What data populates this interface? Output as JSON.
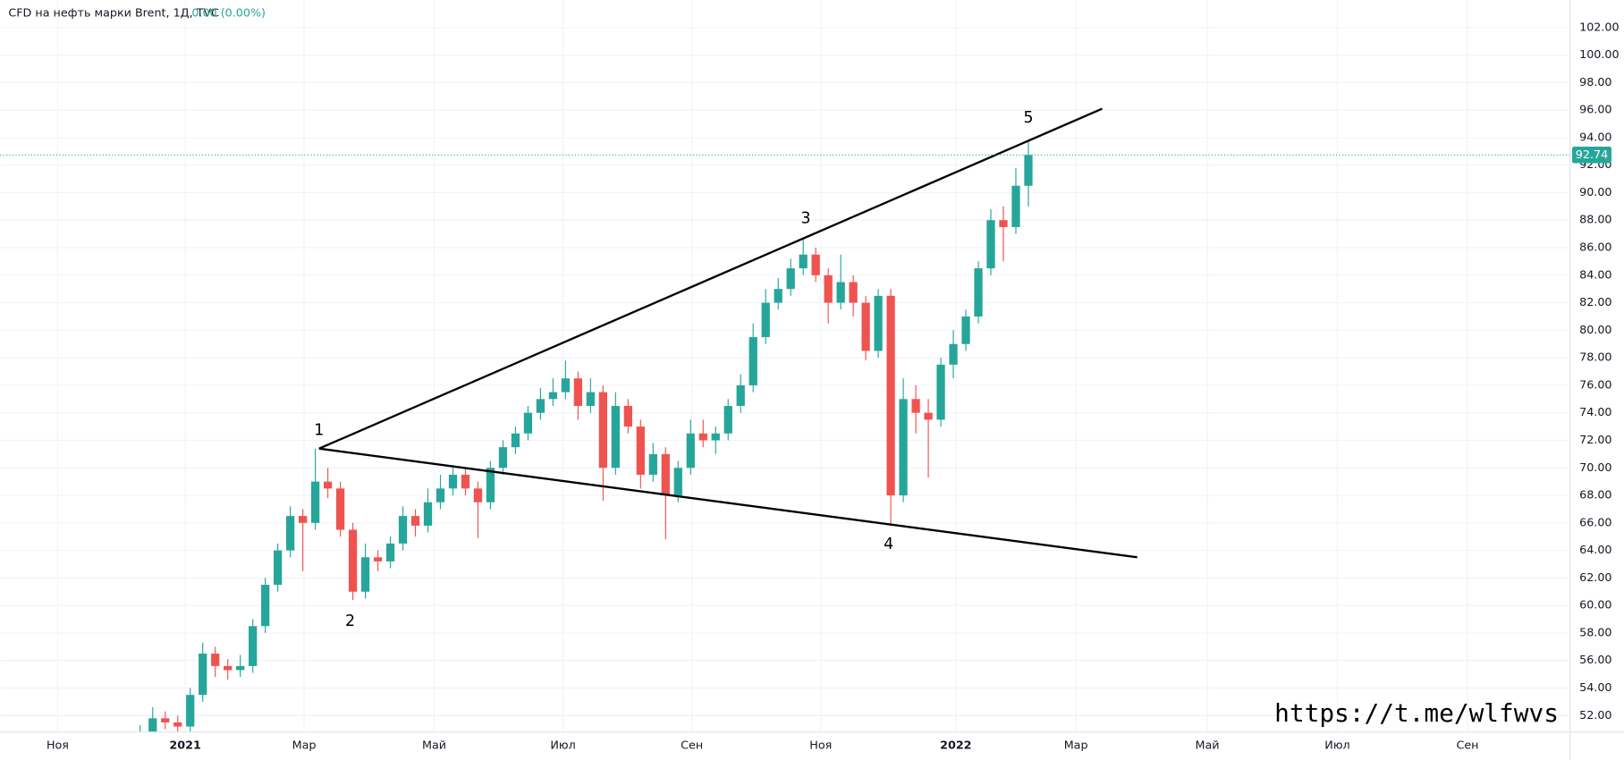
{
  "chart_data": {
    "type": "candlestick",
    "title": "CFD на нефть марки Brent, 1Д, TVC",
    "change_label": "0.00 (0.00%)",
    "up_color": "#26a69a",
    "down_color": "#ef5350",
    "line_color": "#000000",
    "open": [
      50.3,
      50.8,
      51.8,
      51.5,
      51.2,
      53.5,
      56.5,
      55.6,
      55.3,
      55.6,
      58.5,
      61.5,
      64,
      66.5,
      66,
      69,
      68.5,
      65.5,
      61,
      63.5,
      63.2,
      64.5,
      66.5,
      65.8,
      67.5,
      68.5,
      69.5,
      68.5,
      67.5,
      70,
      71.5,
      72.5,
      74,
      75,
      75.5,
      76.5,
      74.5,
      75.5,
      70,
      74.5,
      73,
      69.5,
      71,
      68,
      70,
      72.5,
      72,
      72.5,
      74.5,
      76,
      79.5,
      82,
      83,
      84.5,
      85.5,
      84,
      82,
      83.5,
      82,
      78.5,
      82.5,
      68,
      75,
      74,
      73.5,
      77.5,
      79,
      81,
      84.5,
      88,
      87.5,
      90.5
    ],
    "high": [
      51.3,
      52.6,
      52.3,
      52,
      54,
      57.3,
      57,
      56.1,
      56.4,
      59,
      62,
      64.5,
      67.2,
      67,
      71.4,
      70,
      69,
      66,
      64.5,
      64,
      65,
      67.2,
      67,
      68.5,
      69.5,
      70.2,
      70,
      69,
      70.5,
      72,
      73,
      74.5,
      75.8,
      76.5,
      77.8,
      77,
      76.5,
      76,
      75.5,
      75,
      73.5,
      71.8,
      71.5,
      70.5,
      73.5,
      73.5,
      73,
      75,
      76.8,
      80.5,
      83,
      83.8,
      85.2,
      86.7,
      86,
      84.5,
      85.5,
      84,
      82.5,
      83,
      83,
      76.5,
      76,
      75,
      78,
      80,
      81.5,
      85,
      88.8,
      89,
      91.8,
      93.8
    ],
    "low": [
      49.8,
      50.3,
      51,
      50.7,
      50.7,
      53,
      54.8,
      54.6,
      54.8,
      55.1,
      58,
      61,
      63.5,
      62.5,
      65.5,
      67.8,
      65,
      60.4,
      60.5,
      62.5,
      62.7,
      64,
      65,
      65.3,
      67,
      68,
      68,
      64.9,
      67,
      69.5,
      71,
      72,
      73.5,
      74.5,
      75,
      73.5,
      74,
      67.6,
      69.5,
      72.5,
      68.5,
      69,
      64.8,
      67.5,
      69.5,
      71.5,
      71,
      72,
      74,
      75.5,
      79,
      81.5,
      82.5,
      84,
      83.5,
      80.5,
      81.5,
      81,
      77.8,
      78,
      65.8,
      67.5,
      72.5,
      69.3,
      73,
      76.5,
      78.5,
      80.5,
      84,
      85,
      87,
      89
    ],
    "close": [
      50.8,
      51.8,
      51.5,
      51.2,
      53.5,
      56.5,
      55.6,
      55.3,
      55.6,
      58.5,
      61.5,
      64,
      66.5,
      66,
      69,
      68.5,
      65.5,
      61,
      63.5,
      63.2,
      64.5,
      66.5,
      65.8,
      67.5,
      68.5,
      69.5,
      68.5,
      67.5,
      70,
      71.5,
      72.5,
      74,
      75,
      75.5,
      76.5,
      74.5,
      75.5,
      70,
      74.5,
      73,
      69.5,
      71,
      68,
      70,
      72.5,
      72,
      72.5,
      74.5,
      76,
      79.5,
      82,
      83,
      84.5,
      85.5,
      84,
      82,
      83.5,
      82,
      78.5,
      82.5,
      68,
      75,
      74,
      73.5,
      77.5,
      79,
      81,
      84.5,
      88,
      87.5,
      90.5,
      92.74
    ],
    "last_price": 92.74,
    "trendlines": [
      {
        "x": [
          14.3,
          76.9
        ],
        "y": [
          71.4,
          96.1
        ]
      },
      {
        "x": [
          14.3,
          79.7
        ],
        "y": [
          71.4,
          63.5
        ]
      }
    ],
    "wave_labels": [
      "1",
      "2",
      "3",
      "4",
      "5"
    ],
    "watermark": "https://t.me/wlfwvs",
    "xlim": [
      -11.2,
      114.3
    ],
    "xticks": [
      {
        "value": -6.6,
        "label": "Ноя"
      },
      {
        "value": 3.6,
        "label": "2021"
      },
      {
        "value": 13.1,
        "label": "Мар"
      },
      {
        "value": 23.5,
        "label": "Май"
      },
      {
        "value": 33.8,
        "label": "Июл"
      },
      {
        "value": 44.1,
        "label": "Сен"
      },
      {
        "value": 54.4,
        "label": "Ноя"
      },
      {
        "value": 65.2,
        "label": "2022"
      },
      {
        "value": 74.8,
        "label": "Мар"
      },
      {
        "value": 85.3,
        "label": "Май"
      },
      {
        "value": 95.7,
        "label": "Июл"
      },
      {
        "value": 106.1,
        "label": "Сен"
      }
    ],
    "ylim": [
      50.8,
      104
    ],
    "yticks": [
      {
        "value": 52,
        "label": "52.00"
      },
      {
        "value": 54,
        "label": "54.00"
      },
      {
        "value": 56,
        "label": "56.00"
      },
      {
        "value": 58,
        "label": "58.00"
      },
      {
        "value": 60,
        "label": "60.00"
      },
      {
        "value": 62,
        "label": "62.00"
      },
      {
        "value": 64,
        "label": "64.00"
      },
      {
        "value": 66,
        "label": "66.00"
      },
      {
        "value": 68,
        "label": "68.00"
      },
      {
        "value": 70,
        "label": "70.00"
      },
      {
        "value": 72,
        "label": "72.00"
      },
      {
        "value": 74,
        "label": "74.00"
      },
      {
        "value": 76,
        "label": "76.00"
      },
      {
        "value": 78,
        "label": "78.00"
      },
      {
        "value": 80,
        "label": "80.00"
      },
      {
        "value": 82,
        "label": "82.00"
      },
      {
        "value": 84,
        "label": "84.00"
      },
      {
        "value": 86,
        "label": "86.00"
      },
      {
        "value": 88,
        "label": "88.00"
      },
      {
        "value": 90,
        "label": "90.00"
      },
      {
        "value": 92,
        "label": "92.00"
      },
      {
        "value": 94,
        "label": "94.00"
      },
      {
        "value": 96,
        "label": "96.00"
      },
      {
        "value": 98,
        "label": "98.00"
      },
      {
        "value": 100,
        "label": "100.00"
      },
      {
        "value": 102,
        "label": "102.00"
      }
    ],
    "grid": true
  }
}
